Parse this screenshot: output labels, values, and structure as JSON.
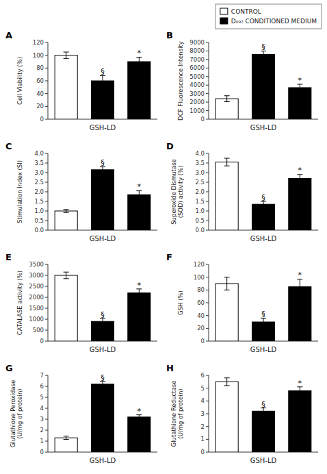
{
  "chart_data": [
    {
      "type": "bar",
      "title": "A",
      "ylabel": "Cell Viability (%)",
      "xlabel": "GSH-LD",
      "categories": [
        null,
        null,
        null
      ],
      "series": [
        {
          "name": "CONTROL",
          "color": "white",
          "values": [
            100,
            null,
            null
          ],
          "errors": [
            5,
            null,
            null
          ]
        },
        {
          "name": "D₀₉₇ CONDITIONED MEDIUM",
          "color": "black",
          "values": [
            null,
            60,
            90
          ],
          "errors": [
            null,
            8,
            7
          ]
        }
      ],
      "ylim": [
        0,
        120
      ],
      "yticks": [
        0,
        20,
        40,
        60,
        80,
        100,
        120
      ],
      "annotations": [
        {
          "x": 1,
          "y": 70,
          "text": "§"
        },
        {
          "x": 2,
          "y": 99,
          "text": "*"
        }
      ]
    },
    {
      "type": "bar",
      "title": "B",
      "ylabel": "DCF Fluorescence Intensity",
      "xlabel": "GSH-LD",
      "categories": [
        null,
        null,
        null
      ],
      "series": [
        {
          "name": "CONTROL",
          "color": "white",
          "values": [
            2400,
            null,
            null
          ],
          "errors": [
            350,
            null,
            null
          ]
        },
        {
          "name": "D₀₉₇ CONDITIONED MEDIUM",
          "color": "black",
          "values": [
            null,
            7600,
            3700
          ],
          "errors": [
            null,
            400,
            400
          ]
        }
      ],
      "ylim": [
        0,
        9000
      ],
      "yticks": [
        0,
        1000,
        2000,
        3000,
        4000,
        5000,
        6000,
        7000,
        8000,
        9000
      ],
      "legend": "upper right",
      "annotations": [
        {
          "x": 1,
          "y": 8100,
          "text": "§"
        },
        {
          "x": 2,
          "y": 4200,
          "text": "*"
        }
      ]
    },
    {
      "type": "bar",
      "title": "C",
      "ylabel": "Stimulation Index (SI)",
      "xlabel": "GSH-LD",
      "categories": [
        null,
        null,
        null
      ],
      "series": [
        {
          "name": "CONTROL",
          "color": "white",
          "values": [
            1.0,
            null,
            null
          ],
          "errors": [
            0.08,
            null,
            null
          ]
        },
        {
          "name": "D₀₉₇ CONDITIONED MEDIUM",
          "color": "black",
          "values": [
            null,
            3.15,
            1.85
          ],
          "errors": [
            null,
            0.15,
            0.2
          ]
        }
      ],
      "ylim": [
        0,
        4
      ],
      "yticks": [
        {
          "value": 0,
          "label": "0.0"
        },
        0.5,
        {
          "value": 1.0,
          "label": "1.0"
        },
        1.5,
        {
          "value": 2.0,
          "label": "2.0"
        },
        2.5,
        {
          "value": 3.0,
          "label": "3.0"
        },
        3.5,
        {
          "value": 4.0,
          "label": "4.0"
        }
      ],
      "annotations": [
        {
          "x": 1,
          "y": 3.35,
          "text": "§"
        },
        {
          "x": 2,
          "y": 2.1,
          "text": "*"
        }
      ]
    },
    {
      "type": "bar",
      "title": "D",
      "ylabel": "Superoxide Dismutase\n(SOD) activity (%)",
      "xlabel": "GSH-LD",
      "categories": [
        null,
        null,
        null
      ],
      "series": [
        {
          "name": "CONTROL",
          "color": "white",
          "values": [
            3.55,
            null,
            null
          ],
          "errors": [
            0.2,
            null,
            null
          ]
        },
        {
          "name": "D₀₉₇ CONDITIONED MEDIUM",
          "color": "black",
          "values": [
            null,
            1.35,
            2.7
          ],
          "errors": [
            null,
            0.15,
            0.2
          ]
        }
      ],
      "ylim": [
        0,
        4
      ],
      "yticks": [
        {
          "value": 0,
          "label": "0.0"
        },
        0.5,
        {
          "value": 1.0,
          "label": "1.0"
        },
        1.5,
        {
          "value": 2.0,
          "label": "2.0"
        },
        2.5,
        {
          "value": 3.0,
          "label": "3.0"
        },
        3.5,
        {
          "value": 4.0,
          "label": "4.0"
        }
      ],
      "annotations": [
        {
          "x": 1,
          "y": 1.55,
          "text": "§"
        },
        {
          "x": 2,
          "y": 2.95,
          "text": "*"
        }
      ]
    },
    {
      "type": "bar",
      "title": "E",
      "ylabel": "CATALASE activity (%)",
      "xlabel": "GSH-LD",
      "categories": [
        null,
        null,
        null
      ],
      "series": [
        {
          "name": "CONTROL",
          "color": "white",
          "values": [
            3000,
            null,
            null
          ],
          "errors": [
            150,
            null,
            null
          ]
        },
        {
          "name": "D₀₉₇ CONDITIONED MEDIUM",
          "color": "black",
          "values": [
            null,
            900,
            2200
          ],
          "errors": [
            null,
            130,
            180
          ]
        }
      ],
      "ylim": [
        0,
        3500
      ],
      "yticks": [
        0,
        500,
        1000,
        1500,
        2000,
        2500,
        3000,
        3500
      ],
      "annotations": [
        {
          "x": 1,
          "y": 1060,
          "text": "§"
        },
        {
          "x": 2,
          "y": 2410,
          "text": "*"
        }
      ]
    },
    {
      "type": "bar",
      "title": "F",
      "ylabel": "GSH (%)",
      "xlabel": "GSH-LD",
      "categories": [
        null,
        null,
        null
      ],
      "series": [
        {
          "name": "CONTROL",
          "color": "white",
          "values": [
            90,
            null,
            null
          ],
          "errors": [
            10,
            null,
            null
          ]
        },
        {
          "name": "D₀₉₇ CONDITIONED MEDIUM",
          "color": "black",
          "values": [
            null,
            30,
            85
          ],
          "errors": [
            null,
            6,
            12
          ]
        }
      ],
      "ylim": [
        0,
        120
      ],
      "yticks": [
        0,
        20,
        40,
        60,
        80,
        100,
        120
      ],
      "annotations": [
        {
          "x": 1,
          "y": 38,
          "text": "§"
        },
        {
          "x": 2,
          "y": 99,
          "text": "*"
        }
      ]
    },
    {
      "type": "bar",
      "title": "G",
      "ylabel": "Glutathione Peroxidase\n(U/mg of protein)",
      "xlabel": "GSH-LD",
      "categories": [
        null,
        null,
        null
      ],
      "series": [
        {
          "name": "CONTROL",
          "color": "white",
          "values": [
            1.3,
            null,
            null
          ],
          "errors": [
            0.15,
            null,
            null
          ]
        },
        {
          "name": "D₀₉₇ CONDITIONED MEDIUM",
          "color": "black",
          "values": [
            null,
            6.2,
            3.2
          ],
          "errors": [
            null,
            0.25,
            0.2
          ]
        }
      ],
      "ylim": [
        0,
        7
      ],
      "yticks": [
        0,
        1,
        2,
        3,
        4,
        5,
        6,
        7
      ],
      "annotations": [
        {
          "x": 1,
          "y": 6.5,
          "text": "§"
        },
        {
          "x": 2,
          "y": 3.45,
          "text": "*"
        }
      ]
    },
    {
      "type": "bar",
      "title": "H",
      "ylabel": "Glutathione Reductase\n(U/mg of protein)",
      "xlabel": "GSH-LD",
      "categories": [
        null,
        null,
        null
      ],
      "series": [
        {
          "name": "CONTROL",
          "color": "white",
          "values": [
            5.5,
            null,
            null
          ],
          "errors": [
            0.3,
            null,
            null
          ]
        },
        {
          "name": "D₀₉₇ CONDITIONED MEDIUM",
          "color": "black",
          "values": [
            null,
            3.2,
            4.8
          ],
          "errors": [
            null,
            0.25,
            0.3
          ]
        }
      ],
      "ylim": [
        0,
        6
      ],
      "yticks": [
        0,
        1,
        2,
        3,
        4,
        5,
        6
      ],
      "annotations": [
        {
          "x": 1,
          "y": 3.5,
          "text": "§"
        },
        {
          "x": 2,
          "y": 5.15,
          "text": "*"
        }
      ]
    }
  ]
}
